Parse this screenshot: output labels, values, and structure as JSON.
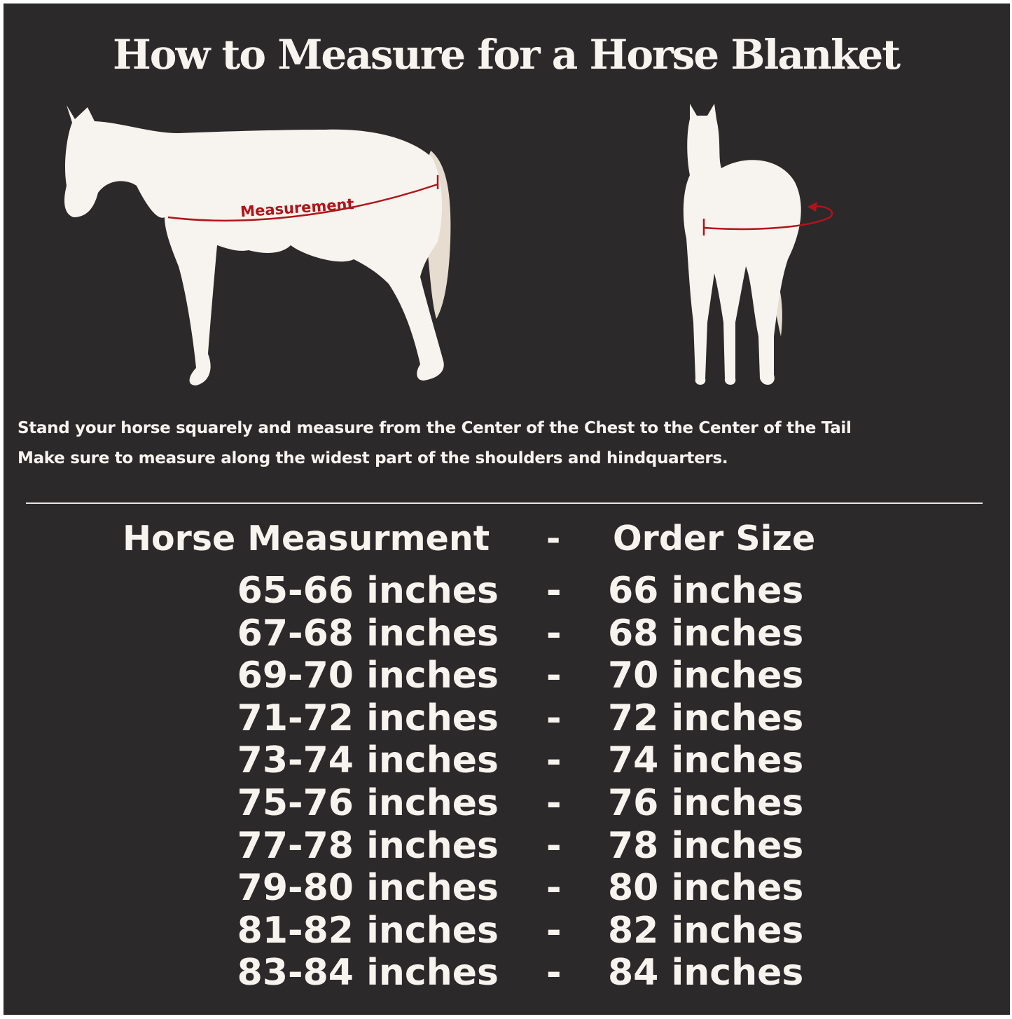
{
  "title": "How to Measure for a Horse Blanket",
  "diagram": {
    "label": "Measurement",
    "colors": {
      "background": "#2b292a",
      "horse": "#f7f3ee",
      "tail": "#e6dccf",
      "measure_line": "#b0141a"
    }
  },
  "instructions": [
    "Stand your horse squarely and measure from the Center of the Chest to the Center of the Tail",
    "Make sure to measure along the widest part of the shoulders and hindquarters."
  ],
  "table": {
    "header": {
      "left": "Horse Measurment",
      "sep": "-",
      "right": "Order Size"
    },
    "rows": [
      {
        "measurement": "65-66 inches",
        "sep": "-",
        "size": "66 inches"
      },
      {
        "measurement": "67-68 inches",
        "sep": "-",
        "size": "68 inches"
      },
      {
        "measurement": "69-70 inches",
        "sep": "-",
        "size": "70 inches"
      },
      {
        "measurement": "71-72 inches",
        "sep": "-",
        "size": "72 inches"
      },
      {
        "measurement": "73-74 inches",
        "sep": "-",
        "size": "74 inches"
      },
      {
        "measurement": "75-76 inches",
        "sep": "-",
        "size": "76 inches"
      },
      {
        "measurement": "77-78 inches",
        "sep": "-",
        "size": "78 inches"
      },
      {
        "measurement": "79-80 inches",
        "sep": "-",
        "size": "80 inches"
      },
      {
        "measurement": "81-82 inches",
        "sep": "-",
        "size": "82 inches"
      },
      {
        "measurement": "83-84 inches",
        "sep": "-",
        "size": "84 inches"
      }
    ]
  }
}
